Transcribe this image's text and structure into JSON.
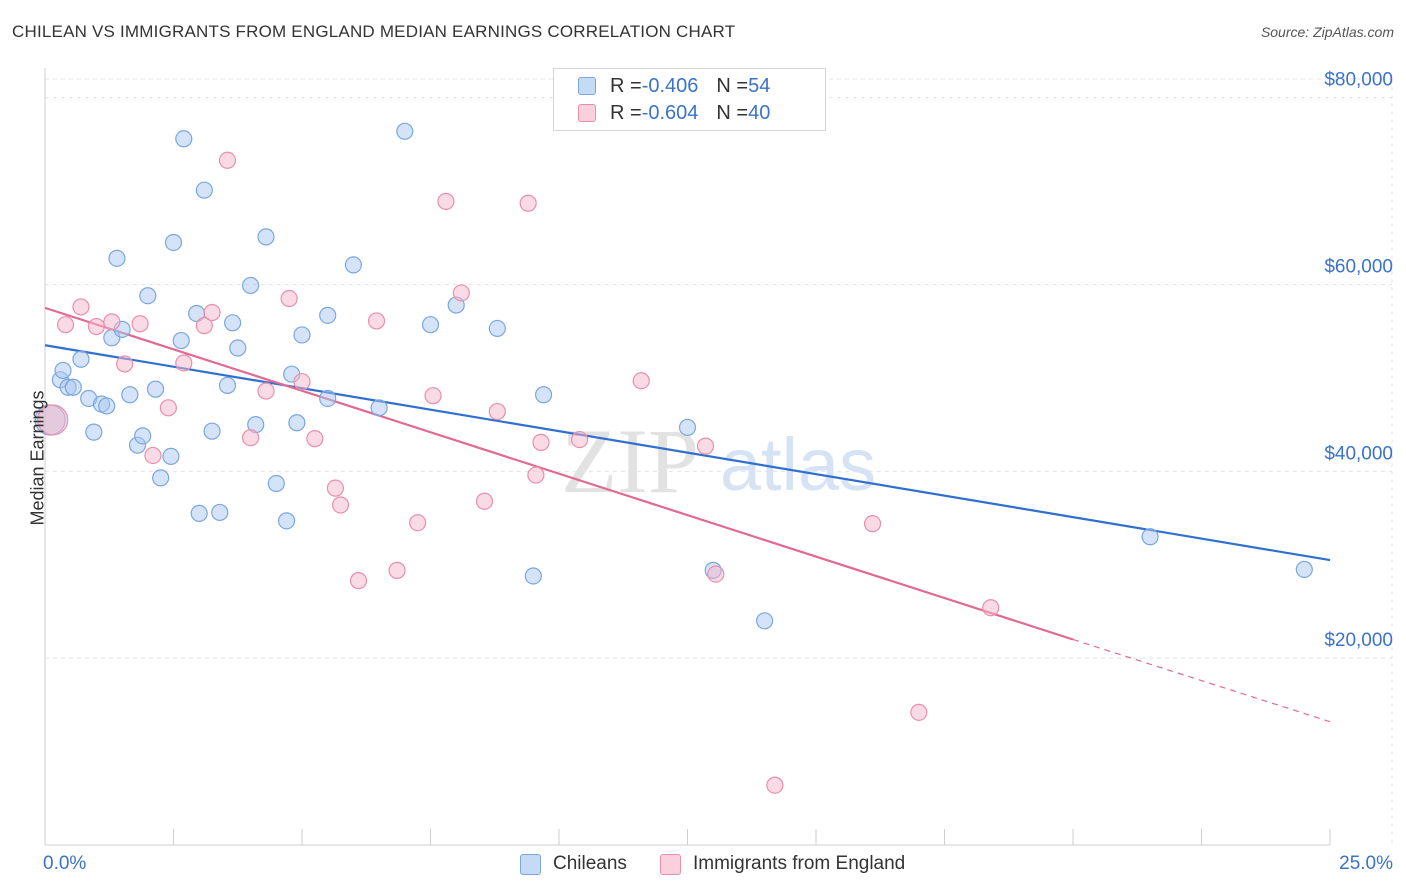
{
  "title": "CHILEAN VS IMMIGRANTS FROM ENGLAND MEDIAN EARNINGS CORRELATION CHART",
  "source": "Source: ZipAtlas.com",
  "watermark": {
    "zip": "ZIP",
    "atlas": "atlas"
  },
  "stats_legend": [
    {
      "r_label": "R = ",
      "r_value": "-0.406",
      "n_label": "N = ",
      "n_value": "54",
      "color": "#a9c8f0"
    },
    {
      "r_label": "R = ",
      "r_value": "-0.604",
      "n_label": "N = ",
      "n_value": "40",
      "color": "#f6b8cb"
    }
  ],
  "chart_data": {
    "type": "scatter",
    "ylabel": "Median Earnings",
    "xlim": [
      0,
      25
    ],
    "ylim": [
      0,
      82000
    ],
    "x_tick_labels": [
      "0.0%",
      "25.0%"
    ],
    "y_ticks": [
      20000,
      40000,
      60000,
      80000
    ],
    "y_tick_labels": [
      "$20,000",
      "$40,000",
      "$60,000",
      "$80,000"
    ],
    "grid": true,
    "legend_position": "bottom",
    "series": [
      {
        "name": "Chileans",
        "color": "#a9c8f0",
        "stroke": "#7aa7de",
        "trend_color": "#2f6fd0",
        "trend": {
          "x1": 0,
          "y1": 53500,
          "x2": 25,
          "y2": 30500
        },
        "points": [
          [
            0.1,
            45500
          ],
          [
            0.3,
            49800
          ],
          [
            0.35,
            50800
          ],
          [
            0.45,
            49000
          ],
          [
            0.55,
            49000
          ],
          [
            0.7,
            52000
          ],
          [
            0.85,
            47800
          ],
          [
            0.95,
            44200
          ],
          [
            1.1,
            47200
          ],
          [
            1.2,
            47000
          ],
          [
            1.3,
            54300
          ],
          [
            1.4,
            62800
          ],
          [
            1.5,
            55200
          ],
          [
            1.65,
            48200
          ],
          [
            1.8,
            42800
          ],
          [
            1.9,
            43800
          ],
          [
            2.0,
            58800
          ],
          [
            2.15,
            48800
          ],
          [
            2.25,
            39300
          ],
          [
            2.45,
            41600
          ],
          [
            2.5,
            64500
          ],
          [
            2.65,
            54000
          ],
          [
            2.7,
            75600
          ],
          [
            2.95,
            56900
          ],
          [
            3.0,
            35500
          ],
          [
            3.1,
            70100
          ],
          [
            3.25,
            44300
          ],
          [
            3.4,
            35600
          ],
          [
            3.55,
            49200
          ],
          [
            3.65,
            55900
          ],
          [
            3.75,
            53200
          ],
          [
            4.0,
            59900
          ],
          [
            4.1,
            45000
          ],
          [
            4.3,
            65100
          ],
          [
            4.5,
            38700
          ],
          [
            4.7,
            34700
          ],
          [
            4.8,
            50400
          ],
          [
            4.9,
            45200
          ],
          [
            5.0,
            54600
          ],
          [
            5.5,
            47800
          ],
          [
            5.5,
            56700
          ],
          [
            6.0,
            62100
          ],
          [
            6.5,
            46800
          ],
          [
            7.0,
            76400
          ],
          [
            7.5,
            55700
          ],
          [
            8.0,
            57800
          ],
          [
            8.8,
            55300
          ],
          [
            9.5,
            28800
          ],
          [
            9.7,
            48200
          ],
          [
            12.5,
            44700
          ],
          [
            13.0,
            29400
          ],
          [
            14.0,
            24000
          ],
          [
            21.5,
            33000
          ],
          [
            24.5,
            29500
          ]
        ]
      },
      {
        "name": "Immigrants from England",
        "color": "#f6b8cb",
        "stroke": "#e98fab",
        "trend_color": "#e06a94",
        "trend": {
          "x1": 0,
          "y1": 57500,
          "x2": 20,
          "y2": 22000
        },
        "trend_dashed_to": {
          "x": 25,
          "y": 13200
        },
        "points": [
          [
            0.15,
            45500
          ],
          [
            0.4,
            55700
          ],
          [
            0.7,
            57600
          ],
          [
            1.0,
            55500
          ],
          [
            1.3,
            56000
          ],
          [
            1.55,
            51500
          ],
          [
            1.85,
            55800
          ],
          [
            2.1,
            41700
          ],
          [
            2.4,
            46800
          ],
          [
            2.7,
            51600
          ],
          [
            3.1,
            55600
          ],
          [
            3.25,
            57000
          ],
          [
            3.55,
            73300
          ],
          [
            4.0,
            43600
          ],
          [
            4.3,
            48600
          ],
          [
            4.75,
            58500
          ],
          [
            5.0,
            49600
          ],
          [
            5.25,
            43500
          ],
          [
            5.65,
            38200
          ],
          [
            5.75,
            36400
          ],
          [
            6.1,
            28300
          ],
          [
            6.45,
            56100
          ],
          [
            6.85,
            29400
          ],
          [
            7.25,
            34500
          ],
          [
            7.55,
            48100
          ],
          [
            7.8,
            68900
          ],
          [
            8.1,
            59100
          ],
          [
            8.55,
            36800
          ],
          [
            8.8,
            46400
          ],
          [
            9.4,
            68700
          ],
          [
            9.55,
            39600
          ],
          [
            9.65,
            43100
          ],
          [
            10.4,
            43400
          ],
          [
            11.6,
            49700
          ],
          [
            12.85,
            42700
          ],
          [
            13.05,
            29000
          ],
          [
            14.2,
            6400
          ],
          [
            16.1,
            34400
          ],
          [
            17.0,
            14200
          ],
          [
            18.4,
            25400
          ]
        ]
      }
    ]
  }
}
